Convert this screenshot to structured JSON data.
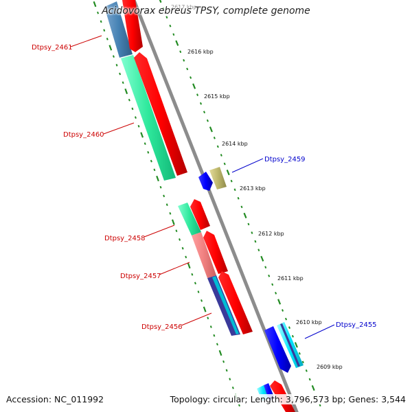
{
  "title": "Acidovorax ebreus TPSY, complete genome",
  "accession_label": "Accession: NC_011992",
  "summary_label": "Topology: circular; Length: 3,796,573 bp; Genes: 3,544",
  "tick_labels": [
    "2617 kbp",
    "2616 kbp",
    "2615 kbp",
    "2614 kbp",
    "2613 kbp",
    "2612 kbp",
    "2611 kbp",
    "2610 kbp",
    "2609 kbp"
  ],
  "genes": [
    {
      "name": "Dtpsy_2461",
      "color": "#cc0000"
    },
    {
      "name": "Dtpsy_2460",
      "color": "#cc0000"
    },
    {
      "name": "Dtpsy_2459",
      "color": "#0000cc"
    },
    {
      "name": "Dtpsy_2458",
      "color": "#cc0000"
    },
    {
      "name": "Dtpsy_2457",
      "color": "#cc0000"
    },
    {
      "name": "Dtpsy_2456",
      "color": "#cc0000"
    },
    {
      "name": "Dtpsy_2455",
      "color": "#0000cc"
    }
  ],
  "colors": {
    "backbone": "#8c8c8c",
    "tick_dots": "#228b22",
    "cds": "#ff0000",
    "plus_strand": "#0000ff"
  }
}
